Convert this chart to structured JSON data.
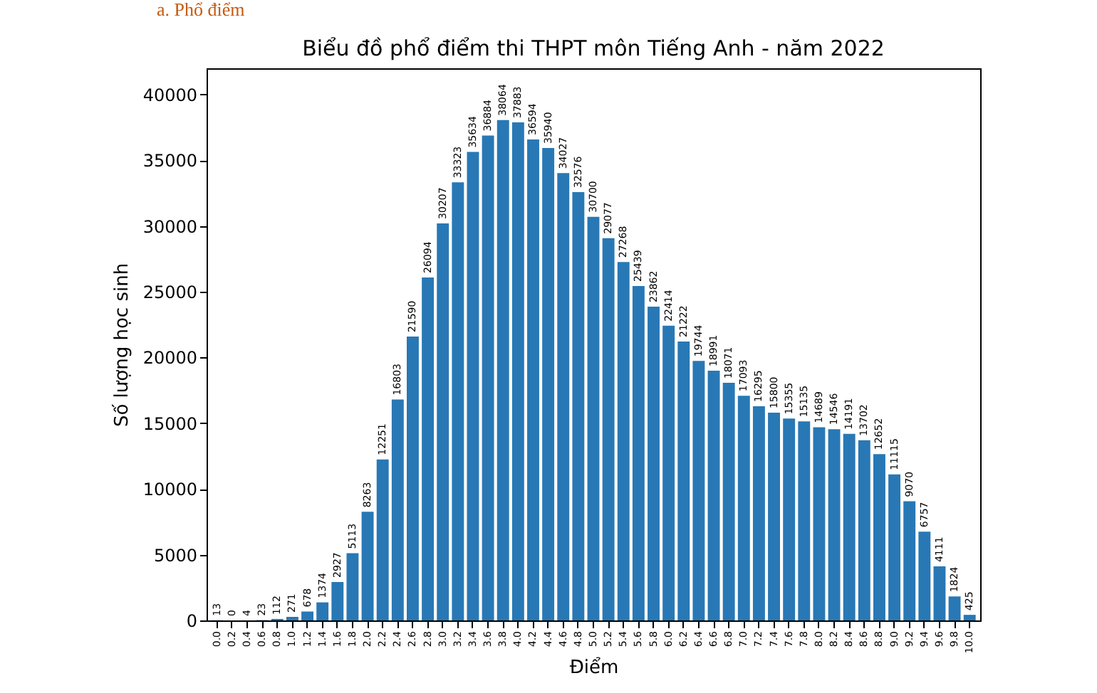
{
  "chart_data": {
    "type": "bar",
    "title": "Biểu đồ phổ điểm thi THPT môn Tiếng Anh - năm 2022",
    "xlabel": "Điểm",
    "ylabel": "Số lượng học sinh",
    "annotations": [
      "a. Phổ điểm"
    ],
    "categories": [
      "0.0",
      "0.2",
      "0.4",
      "0.6",
      "0.8",
      "1.0",
      "1.2",
      "1.4",
      "1.6",
      "1.8",
      "2.0",
      "2.2",
      "2.4",
      "2.6",
      "2.8",
      "3.0",
      "3.2",
      "3.4",
      "3.6",
      "3.8",
      "4.0",
      "4.2",
      "4.4",
      "4.6",
      "4.8",
      "5.0",
      "5.2",
      "5.4",
      "5.6",
      "5.8",
      "6.0",
      "6.2",
      "6.4",
      "6.6",
      "6.8",
      "7.0",
      "7.2",
      "7.4",
      "7.6",
      "7.8",
      "8.0",
      "8.2",
      "8.4",
      "8.6",
      "8.8",
      "9.0",
      "9.2",
      "9.4",
      "9.6",
      "9.8",
      "10.0"
    ],
    "values": [
      13,
      0,
      4,
      23,
      112,
      271,
      678,
      1374,
      2927,
      5113,
      8263,
      12251,
      16803,
      21590,
      26094,
      30207,
      33323,
      35634,
      36884,
      38064,
      37883,
      36594,
      35940,
      34027,
      32576,
      30700,
      29077,
      27268,
      25439,
      23862,
      22414,
      21222,
      19744,
      18991,
      18071,
      17093,
      16295,
      15800,
      15355,
      15135,
      14689,
      14546,
      14191,
      13702,
      12652,
      11115,
      9070,
      6757,
      4111,
      1824,
      425
    ],
    "color": "#2878b5",
    "ylim": [
      0,
      42000
    ],
    "yticks": [
      0,
      5000,
      10000,
      15000,
      20000,
      25000,
      30000,
      35000,
      40000
    ],
    "data_labels": true,
    "grid": false
  }
}
